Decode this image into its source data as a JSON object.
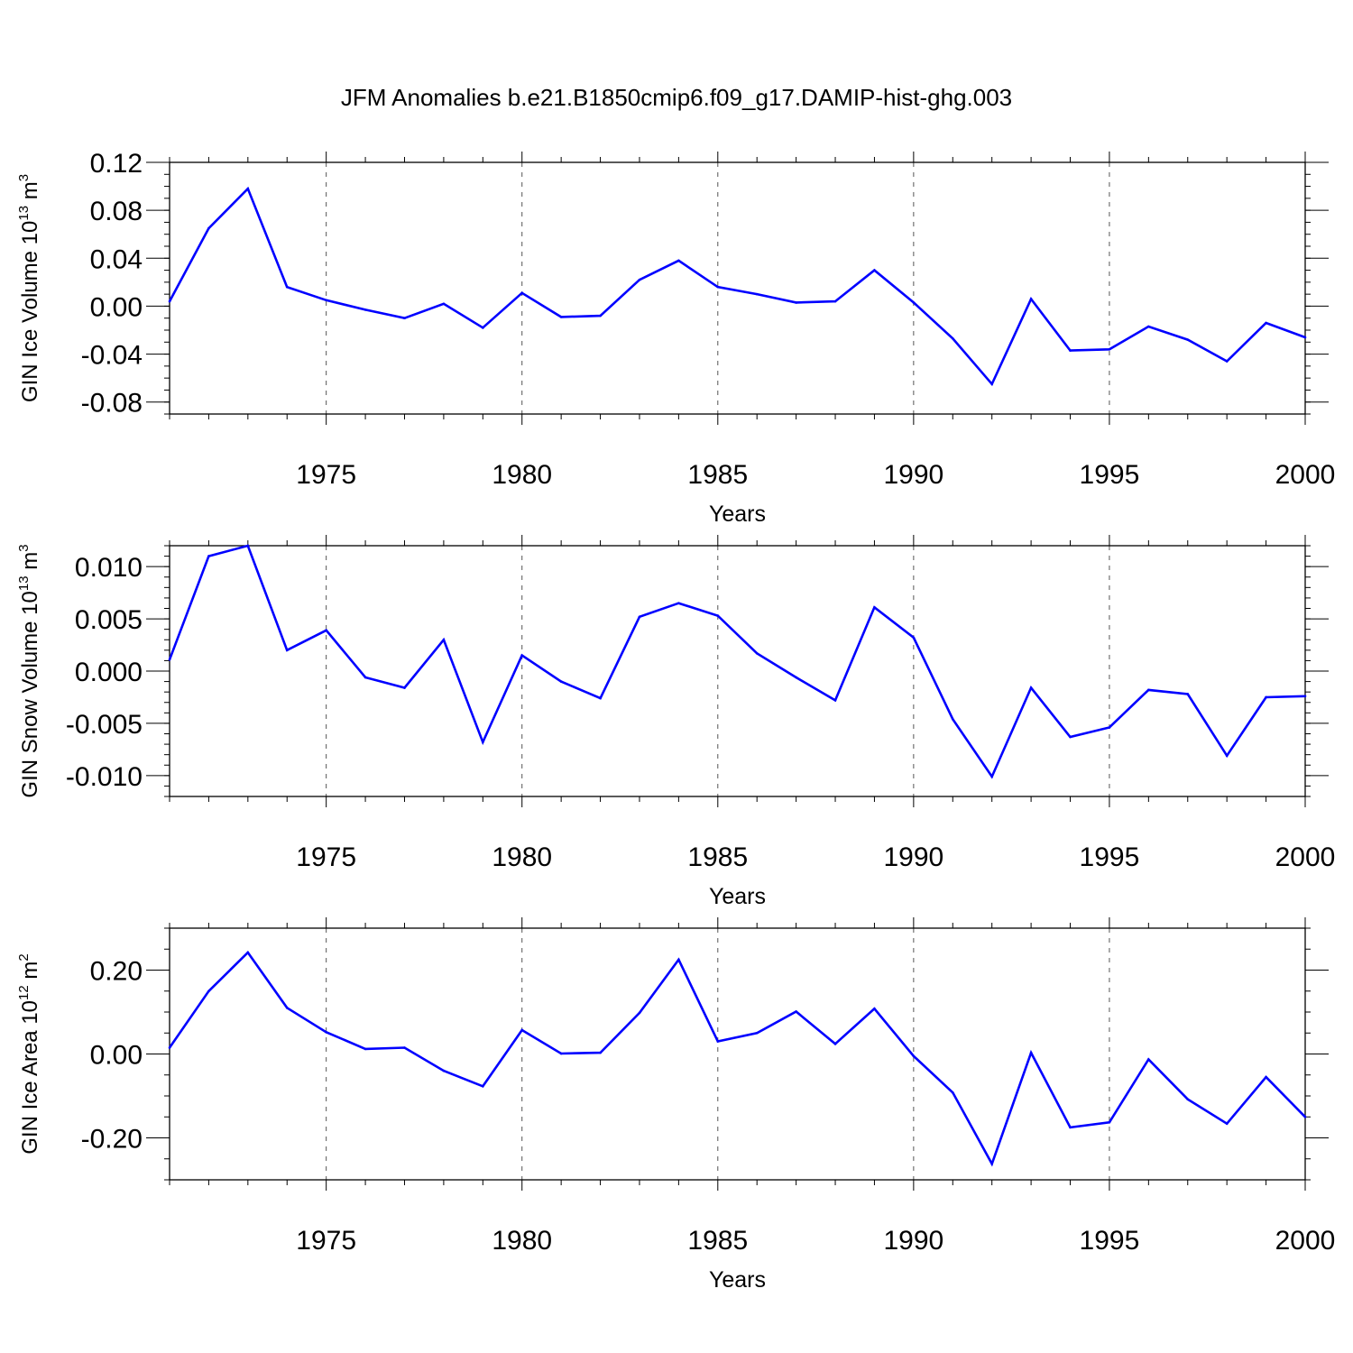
{
  "title": "JFM Anomalies b.e21.B1850cmip6.f09_g17.DAMIP-hist-ghg.003",
  "colors": {
    "line": "#0000ff",
    "axis": "#000000",
    "grid": "#555555"
  },
  "chart_data": [
    {
      "type": "line",
      "ylabel": "GIN Ice Volume 10",
      "ylabel_sup": "13",
      "ylabel_unit": " m",
      "ylabel_unit_sup": "3",
      "xlabel": "Years",
      "xlim": [
        1971,
        2000
      ],
      "ylim": [
        -0.09,
        0.12
      ],
      "yticks": [
        -0.08,
        -0.04,
        0.0,
        0.04,
        0.08,
        0.12
      ],
      "ytick_labels": [
        "-0.08",
        "-0.04",
        "0.00",
        "0.04",
        "0.08",
        "0.12"
      ],
      "yminor_step": 0.01,
      "xticks": [
        1975,
        1980,
        1985,
        1990,
        1995,
        2000
      ],
      "xtick_labels": [
        "1975",
        "1980",
        "1985",
        "1990",
        "1995",
        "2000"
      ],
      "grid": "vertical dashed at major x ticks",
      "x": [
        1971,
        1972,
        1973,
        1974,
        1975,
        1976,
        1977,
        1978,
        1979,
        1980,
        1981,
        1982,
        1983,
        1984,
        1985,
        1986,
        1987,
        1988,
        1989,
        1990,
        1991,
        1992,
        1993,
        1994,
        1995,
        1996,
        1997,
        1998,
        1999,
        2000
      ],
      "values": [
        0.004,
        0.065,
        0.098,
        0.016,
        0.005,
        -0.003,
        -0.01,
        0.002,
        -0.018,
        0.011,
        -0.009,
        -0.008,
        0.022,
        0.038,
        0.016,
        0.01,
        0.003,
        0.004,
        0.03,
        0.003,
        -0.027,
        -0.065,
        0.006,
        -0.037,
        -0.036,
        -0.017,
        -0.028,
        -0.046,
        -0.014,
        -0.026
      ]
    },
    {
      "type": "line",
      "ylabel": "GIN Snow Volume 10",
      "ylabel_sup": "13",
      "ylabel_unit": " m",
      "ylabel_unit_sup": "3",
      "xlabel": "Years",
      "xlim": [
        1971,
        2000
      ],
      "ylim": [
        -0.012,
        0.012
      ],
      "yticks": [
        -0.01,
        -0.005,
        0.0,
        0.005,
        0.01
      ],
      "ytick_labels": [
        "-0.010",
        "-0.005",
        "0.000",
        "0.005",
        "0.010"
      ],
      "yminor_step": 0.001,
      "xticks": [
        1975,
        1980,
        1985,
        1990,
        1995,
        2000
      ],
      "xtick_labels": [
        "1975",
        "1980",
        "1985",
        "1990",
        "1995",
        "2000"
      ],
      "grid": "vertical dashed at major x ticks",
      "x": [
        1971,
        1972,
        1973,
        1974,
        1975,
        1976,
        1977,
        1978,
        1979,
        1980,
        1981,
        1982,
        1983,
        1984,
        1985,
        1986,
        1987,
        1988,
        1989,
        1990,
        1991,
        1992,
        1993,
        1994,
        1995,
        1996,
        1997,
        1998,
        1999,
        2000
      ],
      "values": [
        0.0011,
        0.011,
        0.012,
        0.002,
        0.0039,
        -0.0006,
        -0.0016,
        0.003,
        -0.0068,
        0.0015,
        -0.001,
        -0.0026,
        0.0052,
        0.0065,
        0.0053,
        0.0017,
        -0.0006,
        -0.0028,
        0.0061,
        0.0032,
        -0.0046,
        -0.0101,
        -0.0016,
        -0.0063,
        -0.0054,
        -0.0018,
        -0.0022,
        -0.0081,
        -0.0025,
        -0.0024
      ]
    },
    {
      "type": "line",
      "ylabel": "GIN Ice Area 10",
      "ylabel_sup": "12",
      "ylabel_unit": " m",
      "ylabel_unit_sup": "2",
      "xlabel": "Years",
      "xlim": [
        1971,
        2000
      ],
      "ylim": [
        -0.3,
        0.3
      ],
      "yticks": [
        -0.2,
        0.0,
        0.2
      ],
      "ytick_labels": [
        "-0.20",
        "0.00",
        "0.20"
      ],
      "yminor_step": 0.05,
      "xticks": [
        1975,
        1980,
        1985,
        1990,
        1995,
        2000
      ],
      "xtick_labels": [
        "1975",
        "1980",
        "1985",
        "1990",
        "1995",
        "2000"
      ],
      "grid": "vertical dashed at major x ticks",
      "x": [
        1971,
        1972,
        1973,
        1974,
        1975,
        1976,
        1977,
        1978,
        1979,
        1980,
        1981,
        1982,
        1983,
        1984,
        1985,
        1986,
        1987,
        1988,
        1989,
        1990,
        1991,
        1992,
        1993,
        1994,
        1995,
        1996,
        1997,
        1998,
        1999,
        2000
      ],
      "values": [
        0.015,
        0.15,
        0.242,
        0.11,
        0.052,
        0.012,
        0.015,
        -0.04,
        -0.077,
        0.057,
        0.001,
        0.003,
        0.098,
        0.225,
        0.03,
        0.05,
        0.101,
        0.024,
        0.108,
        -0.005,
        -0.092,
        -0.262,
        0.003,
        -0.175,
        -0.163,
        -0.013,
        -0.108,
        -0.166,
        -0.055,
        -0.15
      ]
    }
  ]
}
